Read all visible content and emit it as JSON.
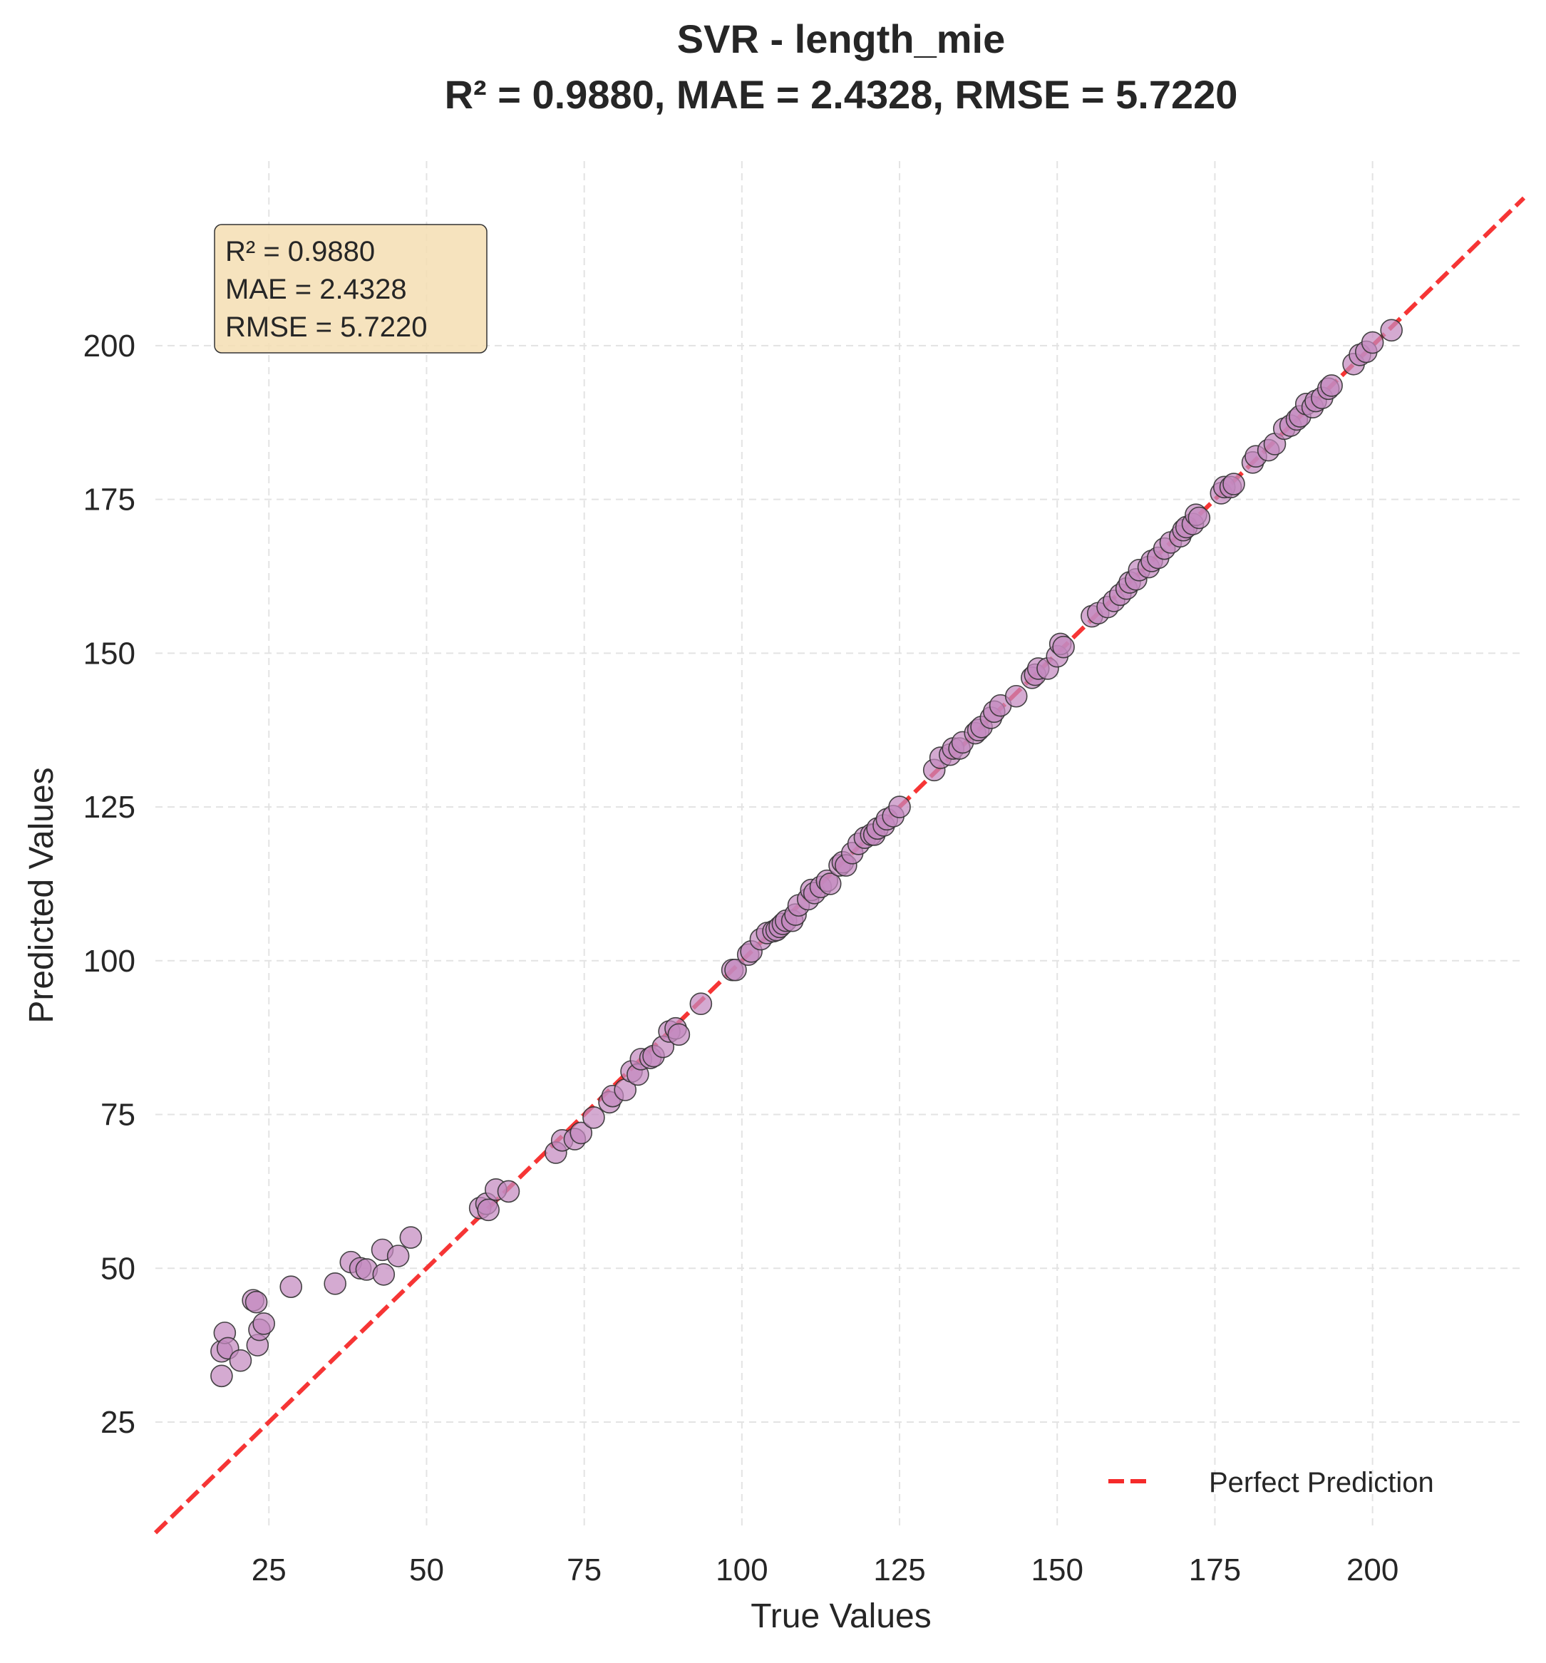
{
  "chart_data": {
    "type": "scatter",
    "title": "SVR - length_mie",
    "subtitle": "R² = 0.9880, MAE = 2.4328, RMSE = 5.7220",
    "xlabel": "True Values",
    "ylabel": "Predicted Values",
    "xlim": [
      7,
      224
    ],
    "ylim": [
      7.5,
      230
    ],
    "xticks": [
      25,
      50,
      75,
      100,
      125,
      150,
      175,
      200
    ],
    "yticks": [
      25,
      50,
      75,
      100,
      125,
      150,
      175,
      200
    ],
    "grid": true,
    "legend_position": "bottom-right",
    "stats_box": {
      "lines": [
        "R² = 0.9880",
        "MAE = 2.4328",
        "RMSE = 5.7220"
      ],
      "position": "top-left",
      "background": "#f5deb3"
    },
    "reference_line": {
      "name": "Perfect Prediction",
      "color": "#f52a2a",
      "style": "dashed",
      "from": [
        7,
        7
      ],
      "to": [
        224,
        224
      ]
    },
    "point_color": "#c489bf",
    "point_edge_color": "#333333",
    "points": [
      [
        17.5,
        32.5
      ],
      [
        17.5,
        36.5
      ],
      [
        18.0,
        39.5
      ],
      [
        18.5,
        37.0
      ],
      [
        20.5,
        35.0
      ],
      [
        22.5,
        44.8
      ],
      [
        23.0,
        44.5
      ],
      [
        23.2,
        37.5
      ],
      [
        23.5,
        40.0
      ],
      [
        24.2,
        41.0
      ],
      [
        28.5,
        47.0
      ],
      [
        35.5,
        47.5
      ],
      [
        38.0,
        51.0
      ],
      [
        39.5,
        50.0
      ],
      [
        40.5,
        49.8
      ],
      [
        43.0,
        53.0
      ],
      [
        43.2,
        49.0
      ],
      [
        45.5,
        52.0
      ],
      [
        47.5,
        55.0
      ],
      [
        58.5,
        59.8
      ],
      [
        59.5,
        60.5
      ],
      [
        59.8,
        59.5
      ],
      [
        61.0,
        62.8
      ],
      [
        63.0,
        62.5
      ],
      [
        70.5,
        68.8
      ],
      [
        71.5,
        70.8
      ],
      [
        73.5,
        71.0
      ],
      [
        74.5,
        72.0
      ],
      [
        76.5,
        74.5
      ],
      [
        79.0,
        77.0
      ],
      [
        79.5,
        78.0
      ],
      [
        81.5,
        79.0
      ],
      [
        82.5,
        82.0
      ],
      [
        83.5,
        81.5
      ],
      [
        84.0,
        84.0
      ],
      [
        85.5,
        84.2
      ],
      [
        86.0,
        84.5
      ],
      [
        87.5,
        86.0
      ],
      [
        88.5,
        88.5
      ],
      [
        89.5,
        89.0
      ],
      [
        90.0,
        88.0
      ],
      [
        93.5,
        93.0
      ],
      [
        98.5,
        98.5
      ],
      [
        99.0,
        98.5
      ],
      [
        101.0,
        101.0
      ],
      [
        101.5,
        101.5
      ],
      [
        103.0,
        103.5
      ],
      [
        104.0,
        104.5
      ],
      [
        105.0,
        104.8
      ],
      [
        105.5,
        105.0
      ],
      [
        106.0,
        105.5
      ],
      [
        106.5,
        106.0
      ],
      [
        107.0,
        106.5
      ],
      [
        108.0,
        106.5
      ],
      [
        108.5,
        107.5
      ],
      [
        109.0,
        109.0
      ],
      [
        110.5,
        110.0
      ],
      [
        111.0,
        111.5
      ],
      [
        111.5,
        111.0
      ],
      [
        112.5,
        112.0
      ],
      [
        113.5,
        113.0
      ],
      [
        114.0,
        112.5
      ],
      [
        115.5,
        115.5
      ],
      [
        116.0,
        116.0
      ],
      [
        116.5,
        115.5
      ],
      [
        117.5,
        117.5
      ],
      [
        118.5,
        119.0
      ],
      [
        119.5,
        120.0
      ],
      [
        120.5,
        120.5
      ],
      [
        121.0,
        120.5
      ],
      [
        121.5,
        121.5
      ],
      [
        122.5,
        122.0
      ],
      [
        123.0,
        123.0
      ],
      [
        124.0,
        123.5
      ],
      [
        125.0,
        125.0
      ],
      [
        130.5,
        131.0
      ],
      [
        131.5,
        133.0
      ],
      [
        133.0,
        133.5
      ],
      [
        133.5,
        134.5
      ],
      [
        134.5,
        134.5
      ],
      [
        135.0,
        135.5
      ],
      [
        137.0,
        137.0
      ],
      [
        137.5,
        137.5
      ],
      [
        138.0,
        138.0
      ],
      [
        139.5,
        139.5
      ],
      [
        140.0,
        140.5
      ],
      [
        141.0,
        141.5
      ],
      [
        143.5,
        143.0
      ],
      [
        146.0,
        146.0
      ],
      [
        146.5,
        146.5
      ],
      [
        147.0,
        147.5
      ],
      [
        148.5,
        147.5
      ],
      [
        150.0,
        149.5
      ],
      [
        150.5,
        151.5
      ],
      [
        151.0,
        151.0
      ],
      [
        155.5,
        156.0
      ],
      [
        156.5,
        156.5
      ],
      [
        158.0,
        157.5
      ],
      [
        159.0,
        158.5
      ],
      [
        160.0,
        159.5
      ],
      [
        161.0,
        160.5
      ],
      [
        161.5,
        161.5
      ],
      [
        162.5,
        162.0
      ],
      [
        163.0,
        163.5
      ],
      [
        164.5,
        164.0
      ],
      [
        165.0,
        165.0
      ],
      [
        166.0,
        165.5
      ],
      [
        167.0,
        167.0
      ],
      [
        168.0,
        168.0
      ],
      [
        169.5,
        169.0
      ],
      [
        170.0,
        170.0
      ],
      [
        170.5,
        170.5
      ],
      [
        171.5,
        171.0
      ],
      [
        172.0,
        172.5
      ],
      [
        172.5,
        172.0
      ],
      [
        176.0,
        176.0
      ],
      [
        176.5,
        177.0
      ],
      [
        177.5,
        177.0
      ],
      [
        178.0,
        177.5
      ],
      [
        181.0,
        181.0
      ],
      [
        181.5,
        182.0
      ],
      [
        183.5,
        183.0
      ],
      [
        184.5,
        184.0
      ],
      [
        186.0,
        186.5
      ],
      [
        187.0,
        187.0
      ],
      [
        188.0,
        188.0
      ],
      [
        188.5,
        188.5
      ],
      [
        189.5,
        190.5
      ],
      [
        190.5,
        190.0
      ],
      [
        191.0,
        191.0
      ],
      [
        192.0,
        191.5
      ],
      [
        193.0,
        193.0
      ],
      [
        193.5,
        193.5
      ],
      [
        197.0,
        197.0
      ],
      [
        198.0,
        198.5
      ],
      [
        199.0,
        199.0
      ],
      [
        200.0,
        200.5
      ],
      [
        203.0,
        202.5
      ]
    ]
  }
}
